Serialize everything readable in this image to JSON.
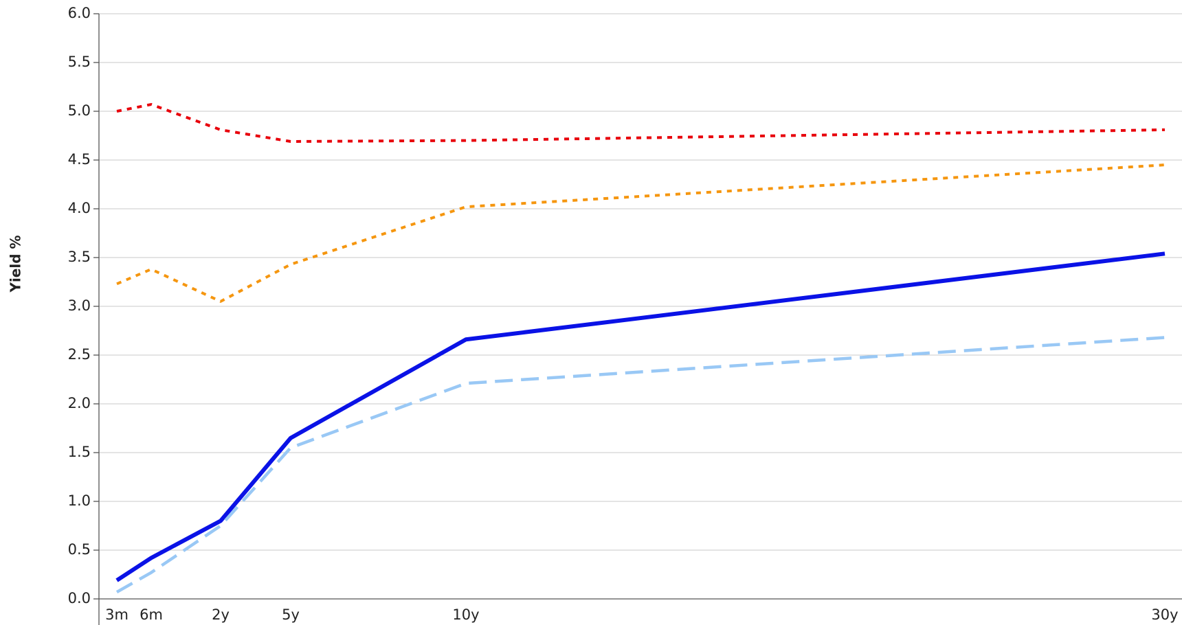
{
  "chart_data": {
    "type": "line",
    "y_label": "Yield %",
    "categories": [
      "3m",
      "6m",
      "2y",
      "5y",
      "10y",
      "30y"
    ],
    "series": [
      {
        "color": "#e8000b",
        "style": "dotted",
        "values": [
          5.0,
          5.07,
          4.81,
          4.69,
          4.7,
          4.81
        ]
      },
      {
        "color": "#f5960f",
        "style": "dotted",
        "values": [
          3.23,
          3.38,
          3.05,
          3.43,
          4.02,
          4.45
        ]
      },
      {
        "color": "#0a12e6",
        "style": "solid",
        "values": [
          0.19,
          0.42,
          0.8,
          1.65,
          2.66,
          3.54
        ]
      },
      {
        "color": "#99c8f5",
        "style": "dashed",
        "values": [
          0.07,
          0.27,
          0.75,
          1.55,
          2.21,
          2.68
        ]
      }
    ],
    "ylim": [
      0,
      6
    ],
    "yticks": [
      {
        "value": 0,
        "label": "0.0"
      },
      0.5,
      {
        "value": 1,
        "label": "1.0"
      },
      1.5,
      {
        "value": 2,
        "label": "2.0"
      },
      2.5,
      {
        "value": 3,
        "label": "3.0"
      },
      3.5,
      {
        "value": 4,
        "label": "4.0"
      },
      4.5,
      {
        "value": 5,
        "label": "5.0"
      },
      5.5,
      {
        "value": 6,
        "label": "6.0"
      }
    ],
    "grid": true
  }
}
